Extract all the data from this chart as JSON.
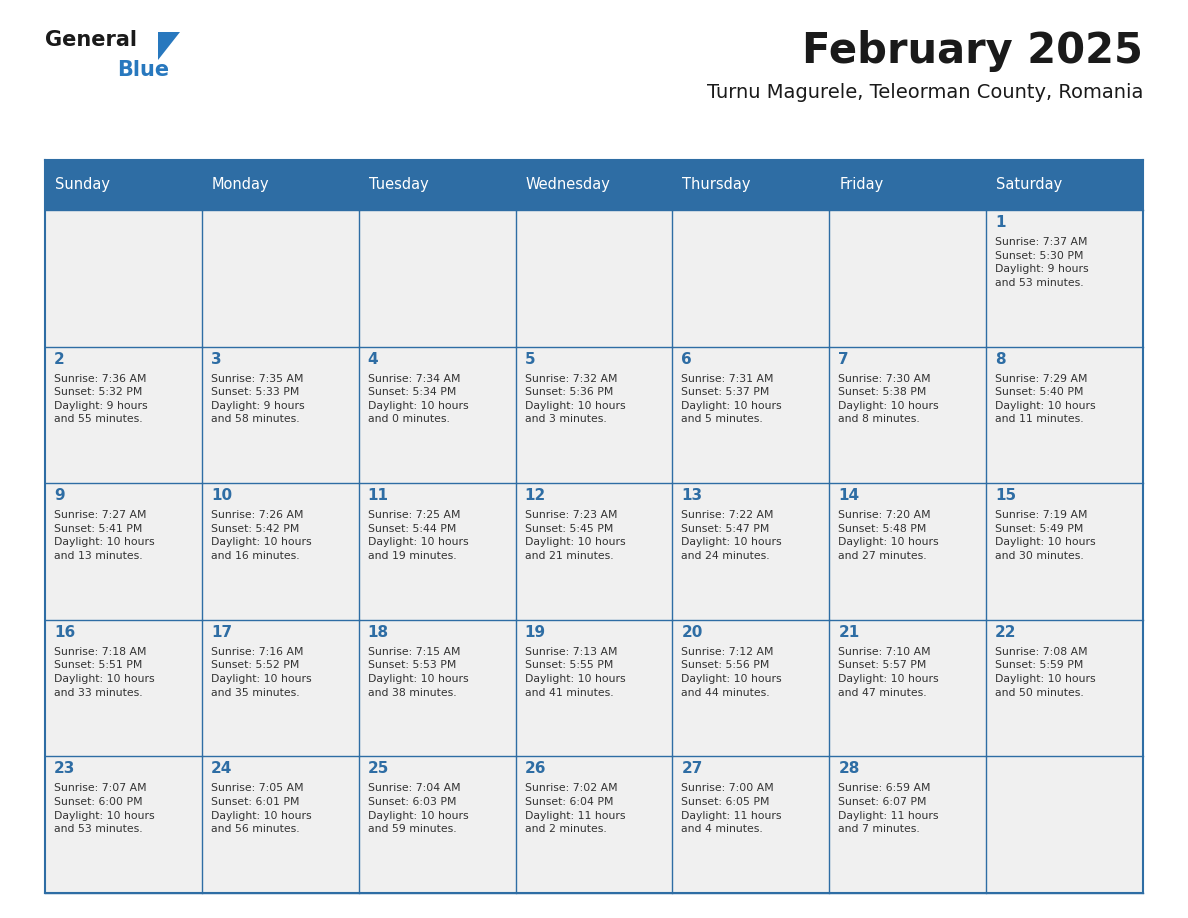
{
  "title": "February 2025",
  "subtitle": "Turnu Magurele, Teleorman County, Romania",
  "days_of_week": [
    "Sunday",
    "Monday",
    "Tuesday",
    "Wednesday",
    "Thursday",
    "Friday",
    "Saturday"
  ],
  "header_bg": "#2E6DA4",
  "header_text": "#FFFFFF",
  "cell_bg": "#F0F0F0",
  "border_color": "#2E6DA4",
  "title_color": "#1a1a1a",
  "subtitle_color": "#1a1a1a",
  "day_num_color": "#2E6DA4",
  "cell_text_color": "#333333",
  "logo_general_color": "#1a1a1a",
  "logo_blue_color": "#2878be",
  "weeks": [
    [
      {
        "day": null,
        "info": null
      },
      {
        "day": null,
        "info": null
      },
      {
        "day": null,
        "info": null
      },
      {
        "day": null,
        "info": null
      },
      {
        "day": null,
        "info": null
      },
      {
        "day": null,
        "info": null
      },
      {
        "day": 1,
        "info": "Sunrise: 7:37 AM\nSunset: 5:30 PM\nDaylight: 9 hours\nand 53 minutes."
      }
    ],
    [
      {
        "day": 2,
        "info": "Sunrise: 7:36 AM\nSunset: 5:32 PM\nDaylight: 9 hours\nand 55 minutes."
      },
      {
        "day": 3,
        "info": "Sunrise: 7:35 AM\nSunset: 5:33 PM\nDaylight: 9 hours\nand 58 minutes."
      },
      {
        "day": 4,
        "info": "Sunrise: 7:34 AM\nSunset: 5:34 PM\nDaylight: 10 hours\nand 0 minutes."
      },
      {
        "day": 5,
        "info": "Sunrise: 7:32 AM\nSunset: 5:36 PM\nDaylight: 10 hours\nand 3 minutes."
      },
      {
        "day": 6,
        "info": "Sunrise: 7:31 AM\nSunset: 5:37 PM\nDaylight: 10 hours\nand 5 minutes."
      },
      {
        "day": 7,
        "info": "Sunrise: 7:30 AM\nSunset: 5:38 PM\nDaylight: 10 hours\nand 8 minutes."
      },
      {
        "day": 8,
        "info": "Sunrise: 7:29 AM\nSunset: 5:40 PM\nDaylight: 10 hours\nand 11 minutes."
      }
    ],
    [
      {
        "day": 9,
        "info": "Sunrise: 7:27 AM\nSunset: 5:41 PM\nDaylight: 10 hours\nand 13 minutes."
      },
      {
        "day": 10,
        "info": "Sunrise: 7:26 AM\nSunset: 5:42 PM\nDaylight: 10 hours\nand 16 minutes."
      },
      {
        "day": 11,
        "info": "Sunrise: 7:25 AM\nSunset: 5:44 PM\nDaylight: 10 hours\nand 19 minutes."
      },
      {
        "day": 12,
        "info": "Sunrise: 7:23 AM\nSunset: 5:45 PM\nDaylight: 10 hours\nand 21 minutes."
      },
      {
        "day": 13,
        "info": "Sunrise: 7:22 AM\nSunset: 5:47 PM\nDaylight: 10 hours\nand 24 minutes."
      },
      {
        "day": 14,
        "info": "Sunrise: 7:20 AM\nSunset: 5:48 PM\nDaylight: 10 hours\nand 27 minutes."
      },
      {
        "day": 15,
        "info": "Sunrise: 7:19 AM\nSunset: 5:49 PM\nDaylight: 10 hours\nand 30 minutes."
      }
    ],
    [
      {
        "day": 16,
        "info": "Sunrise: 7:18 AM\nSunset: 5:51 PM\nDaylight: 10 hours\nand 33 minutes."
      },
      {
        "day": 17,
        "info": "Sunrise: 7:16 AM\nSunset: 5:52 PM\nDaylight: 10 hours\nand 35 minutes."
      },
      {
        "day": 18,
        "info": "Sunrise: 7:15 AM\nSunset: 5:53 PM\nDaylight: 10 hours\nand 38 minutes."
      },
      {
        "day": 19,
        "info": "Sunrise: 7:13 AM\nSunset: 5:55 PM\nDaylight: 10 hours\nand 41 minutes."
      },
      {
        "day": 20,
        "info": "Sunrise: 7:12 AM\nSunset: 5:56 PM\nDaylight: 10 hours\nand 44 minutes."
      },
      {
        "day": 21,
        "info": "Sunrise: 7:10 AM\nSunset: 5:57 PM\nDaylight: 10 hours\nand 47 minutes."
      },
      {
        "day": 22,
        "info": "Sunrise: 7:08 AM\nSunset: 5:59 PM\nDaylight: 10 hours\nand 50 minutes."
      }
    ],
    [
      {
        "day": 23,
        "info": "Sunrise: 7:07 AM\nSunset: 6:00 PM\nDaylight: 10 hours\nand 53 minutes."
      },
      {
        "day": 24,
        "info": "Sunrise: 7:05 AM\nSunset: 6:01 PM\nDaylight: 10 hours\nand 56 minutes."
      },
      {
        "day": 25,
        "info": "Sunrise: 7:04 AM\nSunset: 6:03 PM\nDaylight: 10 hours\nand 59 minutes."
      },
      {
        "day": 26,
        "info": "Sunrise: 7:02 AM\nSunset: 6:04 PM\nDaylight: 11 hours\nand 2 minutes."
      },
      {
        "day": 27,
        "info": "Sunrise: 7:00 AM\nSunset: 6:05 PM\nDaylight: 11 hours\nand 4 minutes."
      },
      {
        "day": 28,
        "info": "Sunrise: 6:59 AM\nSunset: 6:07 PM\nDaylight: 11 hours\nand 7 minutes."
      },
      {
        "day": null,
        "info": null
      }
    ]
  ]
}
